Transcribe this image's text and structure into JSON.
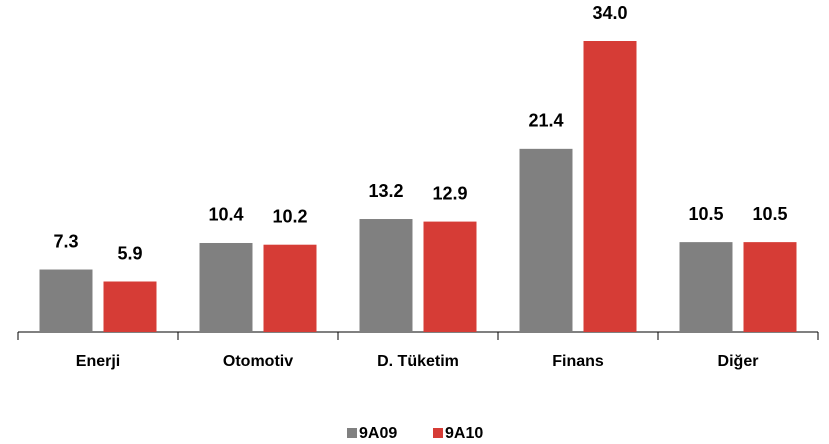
{
  "chart_data": {
    "type": "bar",
    "categories": [
      "Enerji",
      "Otomotiv",
      "D. Tüketim",
      "Finans",
      "Diğer"
    ],
    "series": [
      {
        "name": "9A09",
        "color": "#808080",
        "values": [
          7.3,
          10.4,
          13.2,
          21.4,
          10.5
        ],
        "value_labels": [
          "7.3",
          "10.4",
          "13.2",
          "21.4",
          "10.5"
        ]
      },
      {
        "name": "9A10",
        "color": "#d63c36",
        "values": [
          5.9,
          10.2,
          12.9,
          34.0,
          10.5
        ],
        "value_labels": [
          "5.9",
          "10.2",
          "12.9",
          "34.0",
          "10.5"
        ]
      }
    ],
    "legend": "bottom"
  }
}
